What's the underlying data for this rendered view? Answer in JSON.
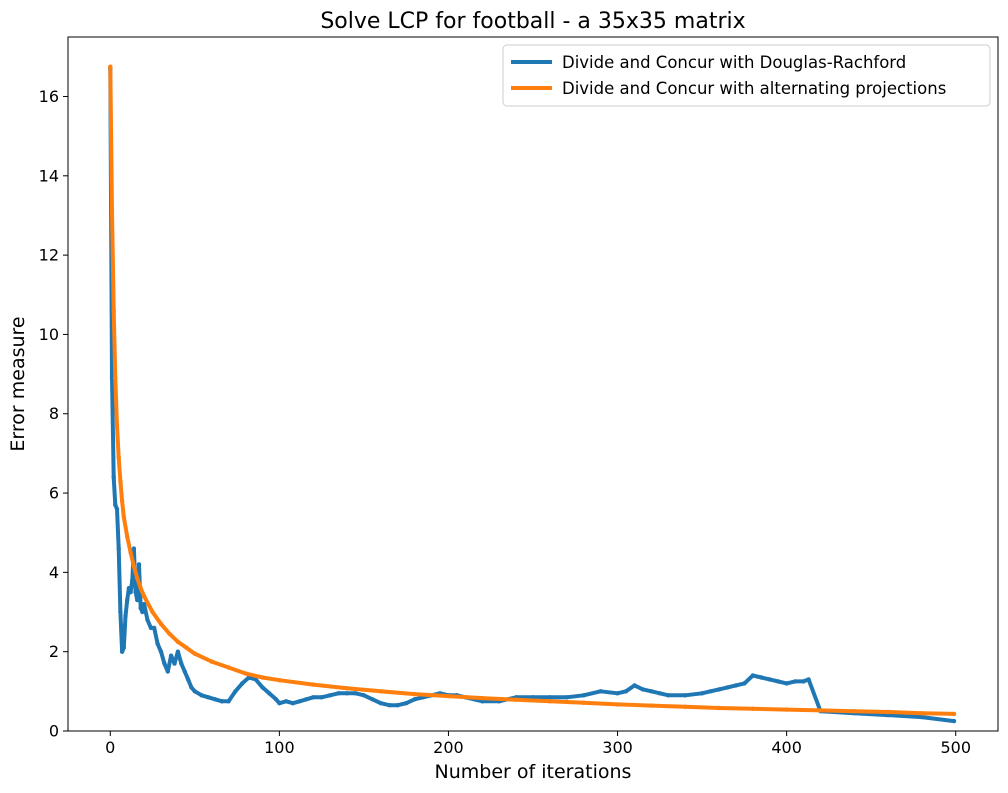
{
  "chart_data": {
    "type": "line",
    "title": "Solve LCP for football - a 35x35 matrix",
    "xlabel": "Number of iterations",
    "ylabel": "Error measure",
    "xlim": [
      -25,
      525
    ],
    "ylim": [
      0,
      17.5
    ],
    "xticks": [
      0,
      100,
      200,
      300,
      400,
      500
    ],
    "yticks": [
      0,
      2,
      4,
      6,
      8,
      10,
      12,
      14,
      16
    ],
    "grid": false,
    "legend_position": "top-right",
    "series": [
      {
        "name": "Divide and Concur with Douglas-Rachford",
        "color": "#1f77b4",
        "x": [
          0,
          1,
          2,
          3,
          4,
          5,
          6,
          7,
          8,
          9,
          10,
          11,
          12,
          13,
          14,
          15,
          16,
          17,
          18,
          19,
          20,
          22,
          24,
          26,
          28,
          30,
          32,
          34,
          36,
          38,
          40,
          42,
          44,
          46,
          48,
          50,
          54,
          58,
          62,
          66,
          70,
          74,
          78,
          82,
          86,
          90,
          94,
          98,
          100,
          104,
          108,
          112,
          116,
          120,
          125,
          130,
          135,
          140,
          145,
          150,
          155,
          160,
          165,
          170,
          175,
          180,
          185,
          190,
          195,
          200,
          205,
          210,
          220,
          230,
          240,
          250,
          260,
          270,
          280,
          290,
          300,
          305,
          310,
          315,
          320,
          325,
          330,
          340,
          350,
          355,
          360,
          365,
          370,
          375,
          380,
          385,
          390,
          395,
          400,
          405,
          410,
          413,
          420,
          440,
          460,
          480,
          499
        ],
        "y": [
          16.7,
          8.9,
          6.4,
          5.7,
          5.6,
          4.6,
          3.0,
          2.0,
          2.1,
          2.9,
          3.3,
          3.6,
          3.5,
          3.8,
          4.6,
          3.5,
          3.3,
          4.2,
          3.1,
          3.0,
          3.2,
          2.8,
          2.6,
          2.6,
          2.2,
          2.0,
          1.7,
          1.5,
          1.9,
          1.7,
          2.0,
          1.7,
          1.5,
          1.3,
          1.1,
          1.0,
          0.9,
          0.85,
          0.8,
          0.75,
          0.75,
          1.0,
          1.2,
          1.35,
          1.3,
          1.1,
          0.95,
          0.8,
          0.7,
          0.75,
          0.7,
          0.75,
          0.8,
          0.85,
          0.85,
          0.9,
          0.95,
          0.95,
          0.95,
          0.9,
          0.8,
          0.7,
          0.65,
          0.65,
          0.7,
          0.8,
          0.85,
          0.9,
          0.95,
          0.9,
          0.9,
          0.85,
          0.75,
          0.75,
          0.85,
          0.85,
          0.85,
          0.85,
          0.9,
          1.0,
          0.95,
          1.0,
          1.15,
          1.05,
          1.0,
          0.95,
          0.9,
          0.9,
          0.95,
          1.0,
          1.05,
          1.1,
          1.15,
          1.2,
          1.4,
          1.35,
          1.3,
          1.25,
          1.2,
          1.25,
          1.25,
          1.3,
          0.5,
          0.45,
          0.4,
          0.35,
          0.25
        ]
      },
      {
        "name": "Divide and Concur with alternating projections",
        "color": "#ff7f0e",
        "x": [
          0,
          1,
          2,
          3,
          4,
          5,
          6,
          7,
          8,
          10,
          12,
          14,
          16,
          18,
          20,
          25,
          30,
          35,
          40,
          45,
          50,
          60,
          70,
          80,
          90,
          100,
          120,
          140,
          160,
          180,
          200,
          220,
          240,
          260,
          280,
          300,
          320,
          340,
          360,
          380,
          400,
          420,
          440,
          460,
          480,
          499
        ],
        "y": [
          16.75,
          13.1,
          10.6,
          8.9,
          7.7,
          6.9,
          6.3,
          5.8,
          5.4,
          4.9,
          4.5,
          4.15,
          3.85,
          3.6,
          3.4,
          3.0,
          2.7,
          2.45,
          2.25,
          2.1,
          1.95,
          1.75,
          1.6,
          1.45,
          1.35,
          1.28,
          1.17,
          1.08,
          1.0,
          0.93,
          0.88,
          0.83,
          0.79,
          0.75,
          0.71,
          0.67,
          0.64,
          0.61,
          0.58,
          0.56,
          0.54,
          0.52,
          0.5,
          0.48,
          0.45,
          0.43
        ]
      }
    ]
  }
}
